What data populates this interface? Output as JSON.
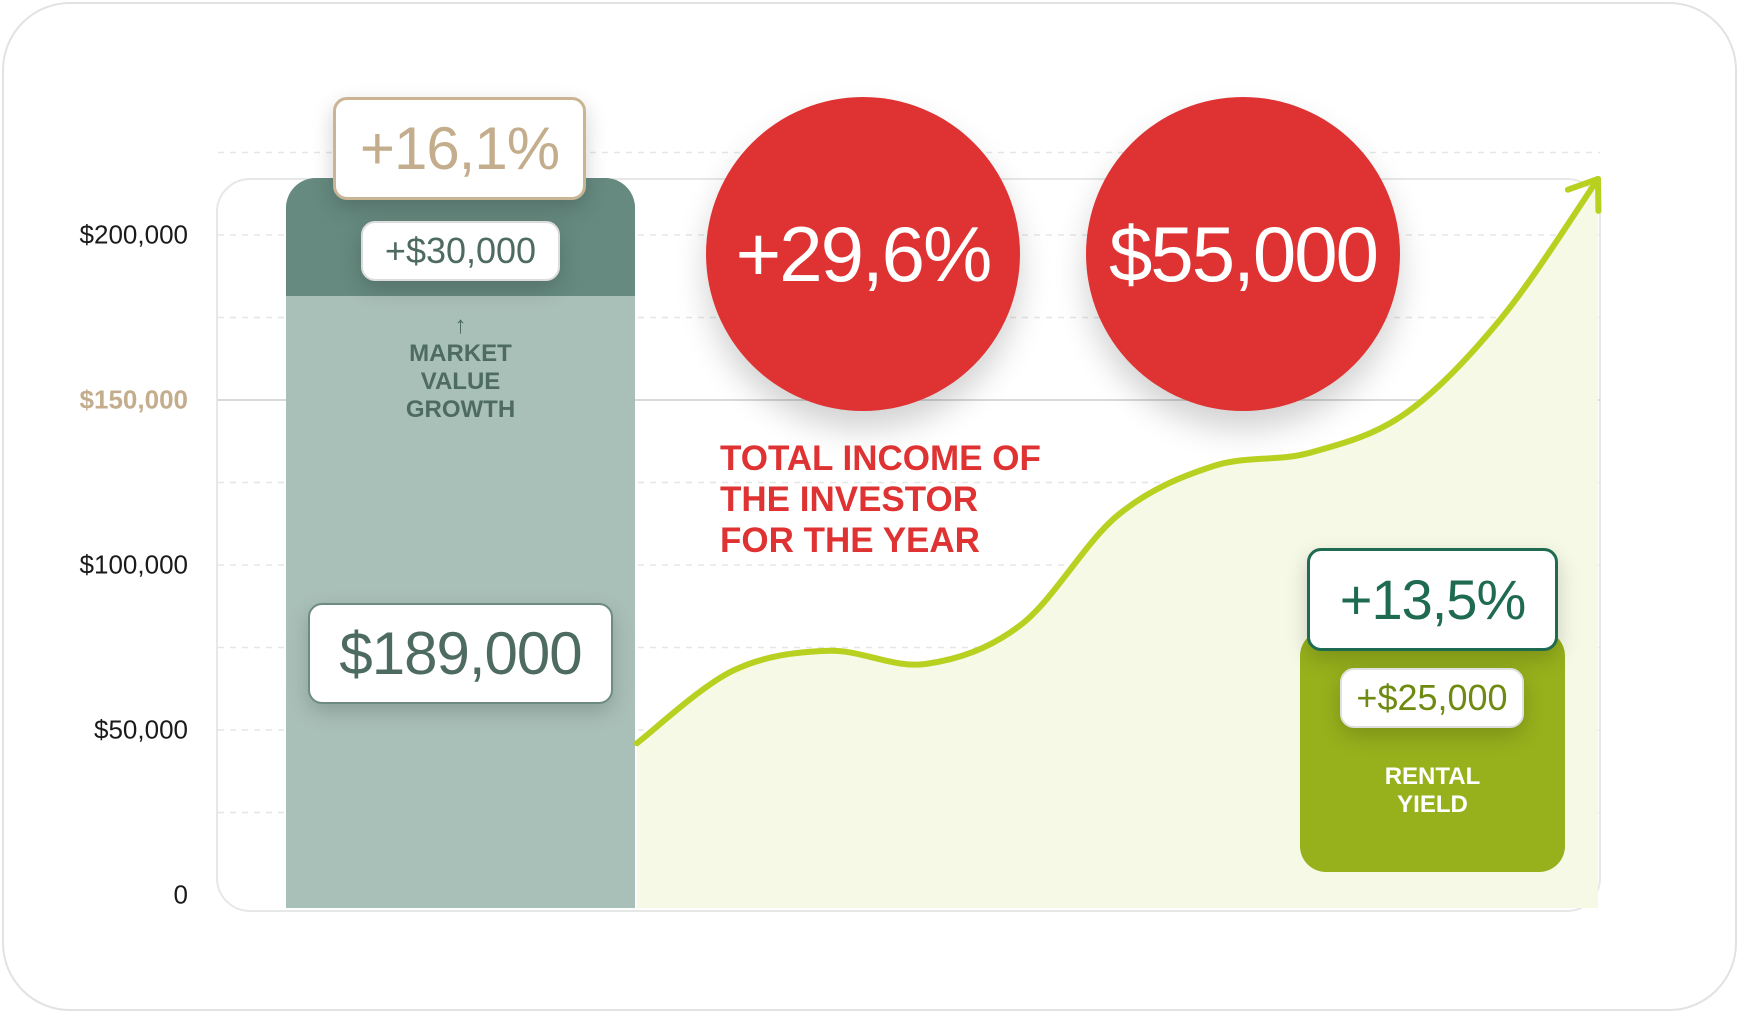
{
  "colors": {
    "bar": "#a9c0b9",
    "bar_cap": "#668a7f",
    "accent_tan": "#c4ad8c",
    "red": "#df3232",
    "curve": "#b8d020",
    "rental": "#97b11c",
    "green_dark": "#1f6b52"
  },
  "chart_data": {
    "type": "bar",
    "y_ticks": [
      "0",
      "$50,000",
      "$100,000",
      "$150,000",
      "$200,000"
    ],
    "ylim": [
      0,
      220000
    ],
    "bars": [
      {
        "value": 189000,
        "increase": 30000
      },
      {
        "value": 25000
      }
    ],
    "curve": {
      "x": [
        0,
        0.1,
        0.2,
        0.3,
        0.4,
        0.5,
        0.6,
        0.7,
        0.8,
        0.9,
        1.0
      ],
      "y": [
        46000,
        68000,
        74000,
        70000,
        82000,
        115000,
        130000,
        134000,
        146000,
        175000,
        217000
      ]
    },
    "labels": {
      "market_pct": "+16,1%",
      "market_increase": "+$30,000",
      "market_arrow": "↑",
      "market_label": "MARKET VALUE GROWTH",
      "property_value": "$189,000",
      "total_pct": "+29,6%",
      "total_amount": "$55,000",
      "total_label": "TOTAL INCOME OF THE INVESTOR FOR THE YEAR",
      "rental_pct": "+13,5%",
      "rental_amount": "+$25,000",
      "rental_label": "RENTAL YIELD"
    }
  }
}
